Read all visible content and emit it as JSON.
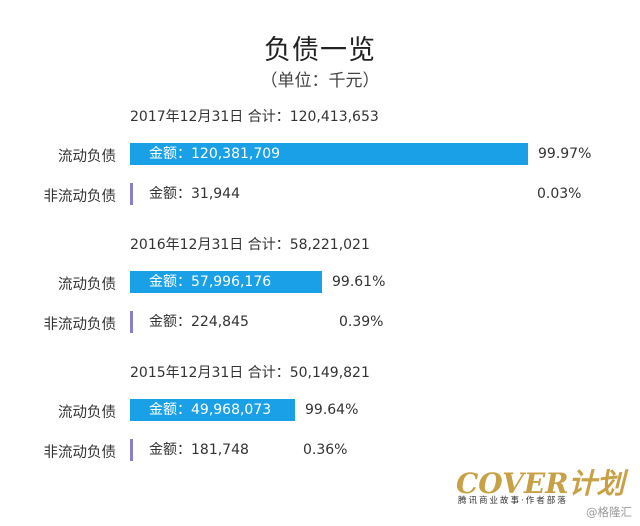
{
  "title": "负债一览",
  "subtitle": "（单位：千元）",
  "chart_data": {
    "type": "bar",
    "unit": "千元",
    "groups": [
      {
        "header": "2017年12月31日  合计：120,413,653",
        "total": 120413653,
        "rows": [
          {
            "label": "流动负债",
            "amount_text": "金额：120,381,709",
            "value": 120381709,
            "percent": "99.97%",
            "share": 0.9997
          },
          {
            "label": "非流动负债",
            "amount_text": "金额：31,944",
            "value": 31944,
            "percent": "0.03%",
            "share": 0.0003
          }
        ]
      },
      {
        "header": "2016年12月31日  合计：58,221,021",
        "total": 58221021,
        "rows": [
          {
            "label": "流动负债",
            "amount_text": "金额：57,996,176",
            "value": 57996176,
            "percent": "99.61%",
            "share": 0.9961
          },
          {
            "label": "非流动负债",
            "amount_text": "金额：224,845",
            "value": 224845,
            "percent": "0.39%",
            "share": 0.0039
          }
        ]
      },
      {
        "header": "2015年12月31日  合计：50,149,821",
        "total": 50149821,
        "rows": [
          {
            "label": "流动负债",
            "amount_text": "金额：49,968,073",
            "value": 49968073,
            "percent": "99.64%",
            "share": 0.9964
          },
          {
            "label": "非流动负债",
            "amount_text": "金额：181,748",
            "value": 181748,
            "percent": "0.36%",
            "share": 0.0036
          }
        ]
      }
    ]
  },
  "colors": {
    "current_bar": "#1aa0e6",
    "noncurrent_bar": "#8b7fc4",
    "logo": "#c8a046"
  },
  "logo": {
    "main": "COVER计划",
    "sub": "腾讯商业故事·作者部落"
  },
  "watermark": "@格隆汇"
}
